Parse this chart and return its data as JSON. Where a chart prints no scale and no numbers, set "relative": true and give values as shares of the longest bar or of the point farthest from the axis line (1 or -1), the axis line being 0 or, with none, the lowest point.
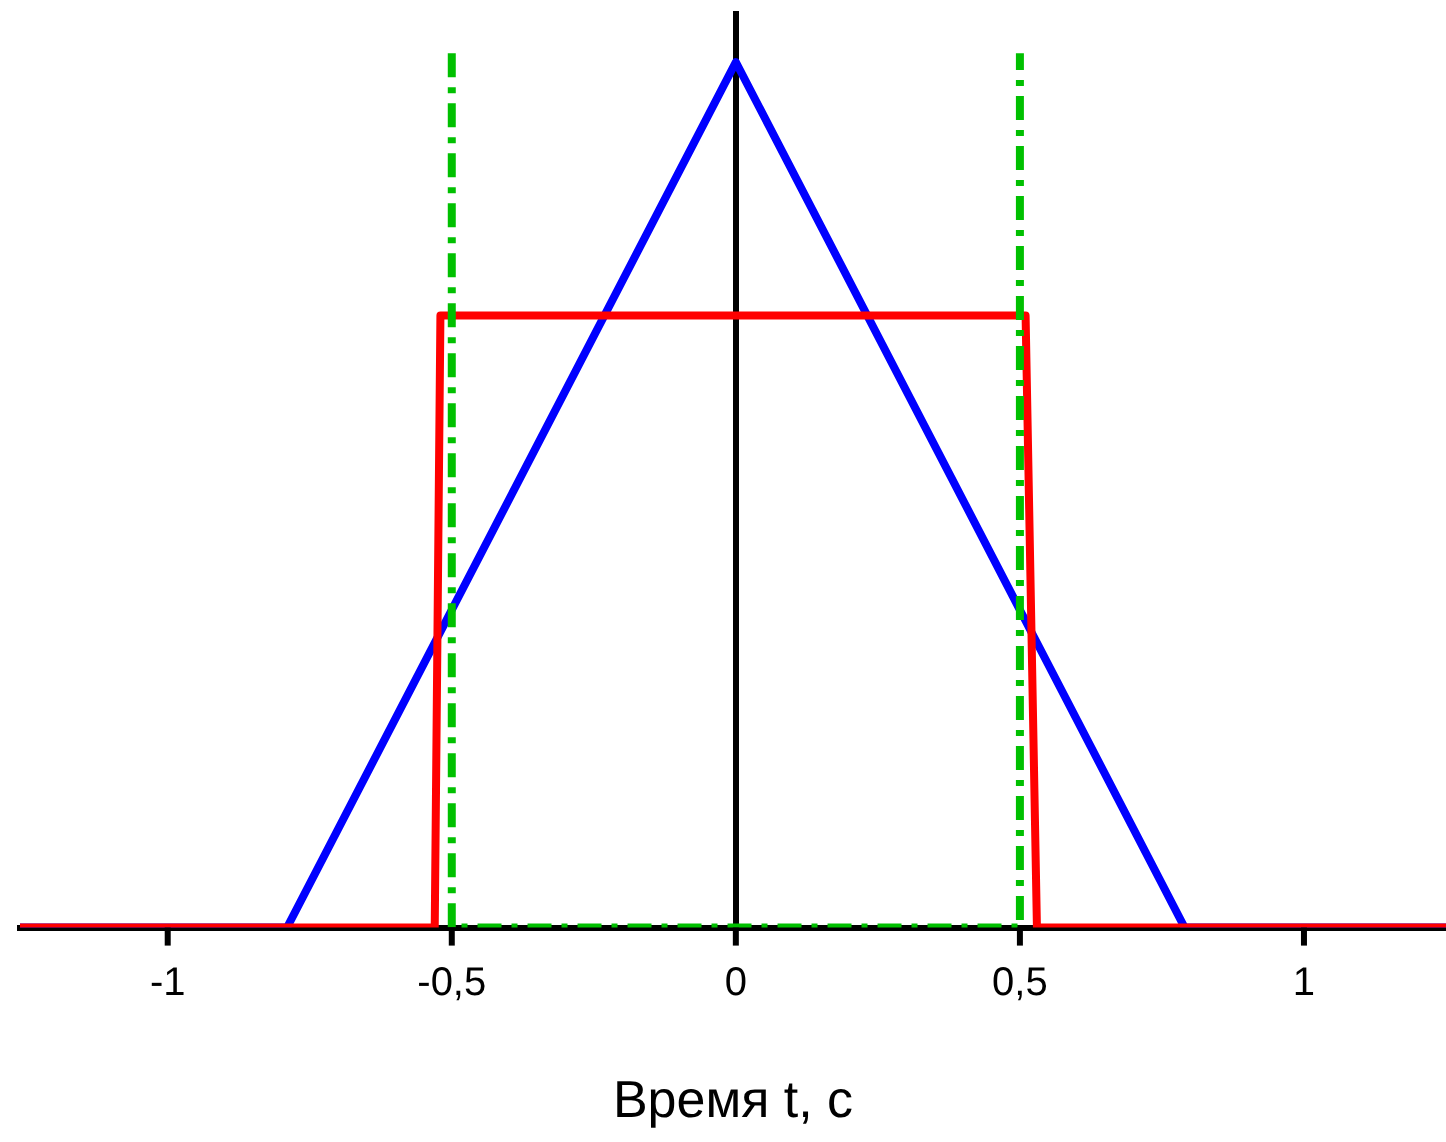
{
  "chart_data": {
    "type": "line",
    "xlabel": "Время t, с",
    "relative": true,
    "xlim": [
      -1.26,
      1.25
    ],
    "xticks": [
      -1,
      {
        "value": -0.5,
        "label": "-0,5"
      },
      0,
      {
        "value": 0.5,
        "label": "0,5"
      },
      1
    ],
    "legend": false,
    "marker": "none",
    "series": [
      {
        "color": "#00c000",
        "line_style": "dashdot",
        "x": [
          -0.5,
          -0.5,
          0.5,
          0.5
        ],
        "values": [
          1,
          0,
          0,
          1
        ]
      },
      {
        "color": "#ff0000",
        "line_style": "solid",
        "x": [
          -1.26,
          -0.53,
          -0.52,
          0.51,
          0.53,
          1.25
        ],
        "values": [
          0,
          0,
          0.7,
          0.7,
          0,
          0
        ]
      },
      {
        "color": "#0000ff",
        "line_style": "solid",
        "x": [
          -1.26,
          -0.79,
          0,
          0.79,
          1.25
        ],
        "values": [
          0,
          0,
          0.99,
          0,
          0
        ]
      }
    ]
  }
}
